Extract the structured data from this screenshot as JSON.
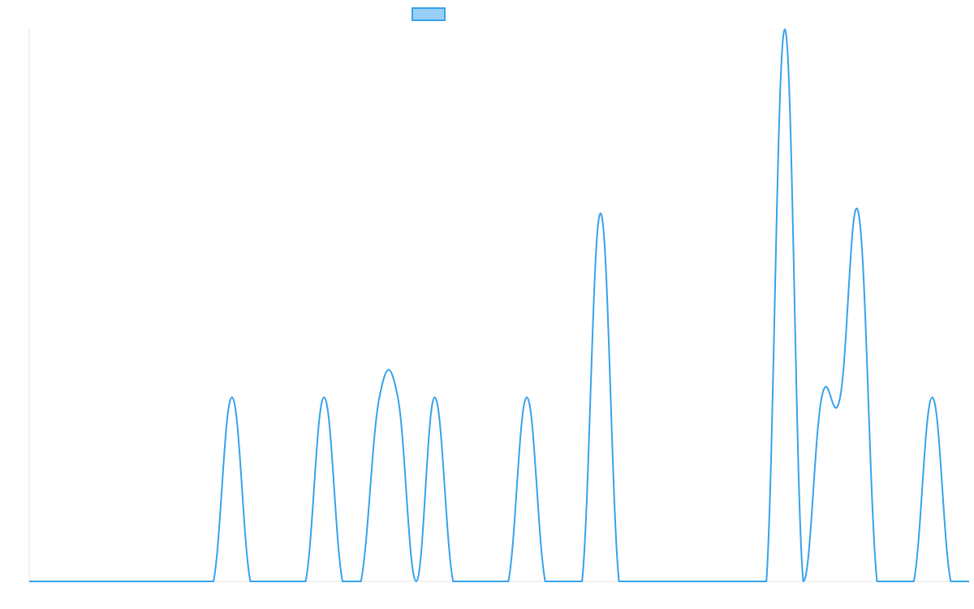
{
  "chart_data": {
    "type": "line",
    "title": "",
    "xlabel": "",
    "ylabel": "",
    "grid": false,
    "legend": {
      "placement": "top-center",
      "entries": [
        {
          "name": "",
          "color": "#36A2EB",
          "fill": "#9AD0F5"
        }
      ]
    },
    "x_tick_labels": [],
    "y_tick_labels": [],
    "ylim": [
      0,
      3
    ],
    "series": [
      {
        "name": "",
        "color": "#36A2EB",
        "values": [
          0,
          0,
          0,
          0,
          0,
          0,
          0,
          0,
          0,
          0,
          0,
          1,
          0,
          0,
          0,
          0,
          1,
          0,
          0,
          1,
          1,
          0,
          1,
          0,
          0,
          0,
          0,
          1,
          0,
          0,
          0,
          2,
          0,
          0,
          0,
          0,
          0,
          0,
          0,
          0,
          0,
          3,
          0,
          1,
          1,
          2,
          0,
          0,
          0,
          1,
          0,
          0
        ]
      }
    ]
  }
}
